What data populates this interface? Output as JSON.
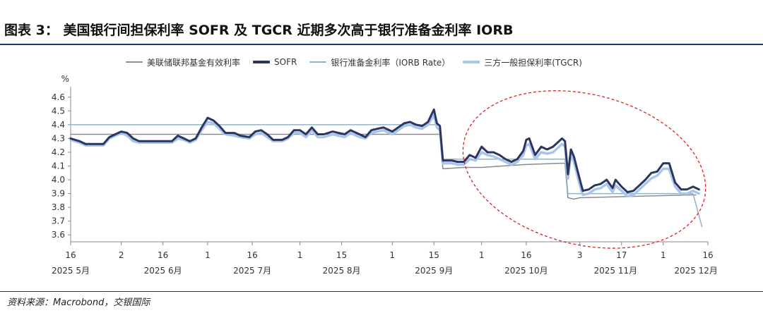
{
  "header": {
    "title": "图表 3： 美国银行间担保利率 SOFR 及 TGCR 近期多次高于银行准备金利率 IORB"
  },
  "footer": {
    "source": "资料来源：Macrobond，交银国际"
  },
  "colors": {
    "effr": "#8c8c8c",
    "sofr": "#2b3560",
    "iorb": "#8eb4cc",
    "tgcr": "#a9c6ea",
    "annotation": "#e02020"
  },
  "chart_data": {
    "type": "line",
    "ylabel": "%",
    "ylim": [
      3.55,
      4.65
    ],
    "yticks": [
      3.6,
      3.7,
      3.8,
      3.9,
      4.0,
      4.1,
      4.2,
      4.3,
      4.4,
      4.5,
      4.6
    ],
    "ytick_labels": [
      "3.6",
      "3.7",
      "3.8",
      "3.9",
      "4.0",
      "4.1",
      "4.2",
      "4.3",
      "4.4",
      "4.5",
      "4.6"
    ],
    "xlim": [
      "2025-05-16",
      "2025-12-16"
    ],
    "xticks": [
      {
        "date": "2025-05-16",
        "label": "16"
      },
      {
        "date": "2025-06-02",
        "label": "2"
      },
      {
        "date": "2025-06-16",
        "label": "16"
      },
      {
        "date": "2025-07-01",
        "label": "1"
      },
      {
        "date": "2025-07-16",
        "label": "16"
      },
      {
        "date": "2025-08-01",
        "label": "1"
      },
      {
        "date": "2025-08-15",
        "label": "15"
      },
      {
        "date": "2025-09-01",
        "label": "1"
      },
      {
        "date": "2025-09-15",
        "label": "15"
      },
      {
        "date": "2025-10-01",
        "label": "1"
      },
      {
        "date": "2025-10-16",
        "label": "16"
      },
      {
        "date": "2025-11-03",
        "label": "3"
      },
      {
        "date": "2025-11-17",
        "label": "17"
      },
      {
        "date": "2025-12-01",
        "label": "1"
      },
      {
        "date": "2025-12-16",
        "label": "16"
      }
    ],
    "month_labels": [
      {
        "date": "2025-05-16",
        "label": "2025 5月"
      },
      {
        "date": "2025-06-16",
        "label": "2025 6月"
      },
      {
        "date": "2025-07-16",
        "label": "2025 7月"
      },
      {
        "date": "2025-08-15",
        "label": "2025 8月"
      },
      {
        "date": "2025-09-15",
        "label": "2025 9月"
      },
      {
        "date": "2025-10-16",
        "label": "2025 10月"
      },
      {
        "date": "2025-11-15",
        "label": "2025 11月"
      },
      {
        "date": "2025-12-12",
        "label": "2025 12月"
      }
    ],
    "grid": false,
    "legend_position": "top",
    "series": [
      {
        "name": "美联储联邦基金有效利率",
        "key": "effr",
        "points": [
          [
            "2025-05-16",
            4.33
          ],
          [
            "2025-09-17",
            4.33
          ],
          [
            "2025-09-18",
            4.08
          ],
          [
            "2025-09-25",
            4.09
          ],
          [
            "2025-10-01",
            4.09
          ],
          [
            "2025-10-15",
            4.11
          ],
          [
            "2025-10-27",
            4.12
          ],
          [
            "2025-10-29",
            4.12
          ],
          [
            "2025-10-30",
            3.87
          ],
          [
            "2025-11-01",
            3.86
          ],
          [
            "2025-11-03",
            3.87
          ],
          [
            "2025-12-10",
            3.89
          ],
          [
            "2025-12-12",
            3.89
          ]
        ]
      },
      {
        "name": "SOFR",
        "key": "sofr",
        "points": [
          [
            "2025-05-16",
            4.3
          ],
          [
            "2025-05-19",
            4.28
          ],
          [
            "2025-05-21",
            4.26
          ],
          [
            "2025-05-27",
            4.26
          ],
          [
            "2025-05-29",
            4.31
          ],
          [
            "2025-05-31",
            4.33
          ],
          [
            "2025-06-02",
            4.35
          ],
          [
            "2025-06-04",
            4.34
          ],
          [
            "2025-06-06",
            4.3
          ],
          [
            "2025-06-08",
            4.28
          ],
          [
            "2025-06-13",
            4.28
          ],
          [
            "2025-06-17",
            4.28
          ],
          [
            "2025-06-19",
            4.28
          ],
          [
            "2025-06-21",
            4.32
          ],
          [
            "2025-06-23",
            4.3
          ],
          [
            "2025-06-25",
            4.28
          ],
          [
            "2025-06-27",
            4.3
          ],
          [
            "2025-06-29",
            4.38
          ],
          [
            "2025-07-01",
            4.45
          ],
          [
            "2025-07-03",
            4.43
          ],
          [
            "2025-07-05",
            4.39
          ],
          [
            "2025-07-07",
            4.34
          ],
          [
            "2025-07-10",
            4.34
          ],
          [
            "2025-07-12",
            4.32
          ],
          [
            "2025-07-15",
            4.31
          ],
          [
            "2025-07-17",
            4.35
          ],
          [
            "2025-07-19",
            4.36
          ],
          [
            "2025-07-21",
            4.33
          ],
          [
            "2025-07-23",
            4.29
          ],
          [
            "2025-07-26",
            4.29
          ],
          [
            "2025-07-28",
            4.31
          ],
          [
            "2025-07-30",
            4.36
          ],
          [
            "2025-08-01",
            4.36
          ],
          [
            "2025-08-03",
            4.33
          ],
          [
            "2025-08-05",
            4.38
          ],
          [
            "2025-08-07",
            4.33
          ],
          [
            "2025-08-09",
            4.33
          ],
          [
            "2025-08-12",
            4.35
          ],
          [
            "2025-08-14",
            4.34
          ],
          [
            "2025-08-16",
            4.33
          ],
          [
            "2025-08-18",
            4.36
          ],
          [
            "2025-08-21",
            4.33
          ],
          [
            "2025-08-23",
            4.31
          ],
          [
            "2025-08-25",
            4.36
          ],
          [
            "2025-08-27",
            4.37
          ],
          [
            "2025-08-29",
            4.38
          ],
          [
            "2025-09-01",
            4.35
          ],
          [
            "2025-09-03",
            4.38
          ],
          [
            "2025-09-05",
            4.41
          ],
          [
            "2025-09-07",
            4.42
          ],
          [
            "2025-09-09",
            4.4
          ],
          [
            "2025-09-11",
            4.39
          ],
          [
            "2025-09-13",
            4.42
          ],
          [
            "2025-09-15",
            4.51
          ],
          [
            "2025-09-16",
            4.41
          ],
          [
            "2025-09-17",
            4.39
          ],
          [
            "2025-09-18",
            4.14
          ],
          [
            "2025-09-21",
            4.14
          ],
          [
            "2025-09-23",
            4.13
          ],
          [
            "2025-09-25",
            4.13
          ],
          [
            "2025-09-27",
            4.18
          ],
          [
            "2025-09-29",
            4.16
          ],
          [
            "2025-10-01",
            4.24
          ],
          [
            "2025-10-03",
            4.2
          ],
          [
            "2025-10-05",
            4.2
          ],
          [
            "2025-10-07",
            4.18
          ],
          [
            "2025-10-09",
            4.15
          ],
          [
            "2025-10-11",
            4.13
          ],
          [
            "2025-10-13",
            4.15
          ],
          [
            "2025-10-15",
            4.21
          ],
          [
            "2025-10-16",
            4.29
          ],
          [
            "2025-10-17",
            4.3
          ],
          [
            "2025-10-19",
            4.18
          ],
          [
            "2025-10-21",
            4.24
          ],
          [
            "2025-10-23",
            4.22
          ],
          [
            "2025-10-25",
            4.24
          ],
          [
            "2025-10-27",
            4.28
          ],
          [
            "2025-10-28",
            4.3
          ],
          [
            "2025-10-29",
            4.28
          ],
          [
            "2025-10-30",
            4.04
          ],
          [
            "2025-10-31",
            4.22
          ],
          [
            "2025-11-01",
            4.17
          ],
          [
            "2025-11-03",
            4.0
          ],
          [
            "2025-11-04",
            3.92
          ],
          [
            "2025-11-06",
            3.93
          ],
          [
            "2025-11-08",
            3.96
          ],
          [
            "2025-11-10",
            3.97
          ],
          [
            "2025-11-12",
            4.0
          ],
          [
            "2025-11-14",
            3.94
          ],
          [
            "2025-11-15",
            4.0
          ],
          [
            "2025-11-17",
            3.95
          ],
          [
            "2025-11-19",
            3.91
          ],
          [
            "2025-11-21",
            3.92
          ],
          [
            "2025-11-23",
            3.96
          ],
          [
            "2025-11-25",
            4.0
          ],
          [
            "2025-11-27",
            4.05
          ],
          [
            "2025-11-29",
            4.06
          ],
          [
            "2025-12-01",
            4.12
          ],
          [
            "2025-12-03",
            4.12
          ],
          [
            "2025-12-05",
            3.98
          ],
          [
            "2025-12-07",
            3.93
          ],
          [
            "2025-12-09",
            3.93
          ],
          [
            "2025-12-11",
            3.95
          ],
          [
            "2025-12-13",
            3.93
          ]
        ]
      },
      {
        "name": "银行准备金利率（IORB Rate）",
        "key": "iorb",
        "points": [
          [
            "2025-05-16",
            4.4
          ],
          [
            "2025-09-17",
            4.4
          ],
          [
            "2025-09-18",
            4.15
          ],
          [
            "2025-10-29",
            4.15
          ],
          [
            "2025-10-30",
            3.9
          ],
          [
            "2025-12-10",
            3.9
          ],
          [
            "2025-12-11",
            3.9
          ],
          [
            "2025-12-14",
            3.66
          ]
        ]
      },
      {
        "name": "三方一般担保利率(TGCR)",
        "key": "tgcr",
        "points": [
          [
            "2025-05-16",
            4.29
          ],
          [
            "2025-05-19",
            4.27
          ],
          [
            "2025-05-21",
            4.25
          ],
          [
            "2025-05-27",
            4.25
          ],
          [
            "2025-05-29",
            4.3
          ],
          [
            "2025-05-31",
            4.32
          ],
          [
            "2025-06-02",
            4.34
          ],
          [
            "2025-06-04",
            4.32
          ],
          [
            "2025-06-06",
            4.28
          ],
          [
            "2025-06-08",
            4.27
          ],
          [
            "2025-06-13",
            4.27
          ],
          [
            "2025-06-17",
            4.27
          ],
          [
            "2025-06-19",
            4.27
          ],
          [
            "2025-06-21",
            4.3
          ],
          [
            "2025-06-23",
            4.29
          ],
          [
            "2025-06-25",
            4.27
          ],
          [
            "2025-06-27",
            4.29
          ],
          [
            "2025-06-29",
            4.36
          ],
          [
            "2025-07-01",
            4.42
          ],
          [
            "2025-07-03",
            4.41
          ],
          [
            "2025-07-05",
            4.37
          ],
          [
            "2025-07-07",
            4.33
          ],
          [
            "2025-07-10",
            4.32
          ],
          [
            "2025-07-12",
            4.31
          ],
          [
            "2025-07-15",
            4.3
          ],
          [
            "2025-07-17",
            4.33
          ],
          [
            "2025-07-19",
            4.34
          ],
          [
            "2025-07-21",
            4.31
          ],
          [
            "2025-07-23",
            4.28
          ],
          [
            "2025-07-26",
            4.28
          ],
          [
            "2025-07-28",
            4.3
          ],
          [
            "2025-07-30",
            4.34
          ],
          [
            "2025-08-01",
            4.34
          ],
          [
            "2025-08-03",
            4.31
          ],
          [
            "2025-08-05",
            4.36
          ],
          [
            "2025-08-07",
            4.31
          ],
          [
            "2025-08-09",
            4.31
          ],
          [
            "2025-08-12",
            4.33
          ],
          [
            "2025-08-14",
            4.32
          ],
          [
            "2025-08-16",
            4.31
          ],
          [
            "2025-08-18",
            4.34
          ],
          [
            "2025-08-21",
            4.31
          ],
          [
            "2025-08-23",
            4.3
          ],
          [
            "2025-08-25",
            4.34
          ],
          [
            "2025-08-27",
            4.35
          ],
          [
            "2025-08-29",
            4.36
          ],
          [
            "2025-09-01",
            4.33
          ],
          [
            "2025-09-03",
            4.36
          ],
          [
            "2025-09-05",
            4.39
          ],
          [
            "2025-09-07",
            4.4
          ],
          [
            "2025-09-09",
            4.38
          ],
          [
            "2025-09-11",
            4.37
          ],
          [
            "2025-09-13",
            4.4
          ],
          [
            "2025-09-15",
            4.47
          ],
          [
            "2025-09-16",
            4.38
          ],
          [
            "2025-09-17",
            4.36
          ],
          [
            "2025-09-18",
            4.12
          ],
          [
            "2025-09-21",
            4.12
          ],
          [
            "2025-09-23",
            4.11
          ],
          [
            "2025-09-25",
            4.11
          ],
          [
            "2025-09-27",
            4.15
          ],
          [
            "2025-09-29",
            4.14
          ],
          [
            "2025-10-01",
            4.2
          ],
          [
            "2025-10-03",
            4.18
          ],
          [
            "2025-10-05",
            4.17
          ],
          [
            "2025-10-07",
            4.15
          ],
          [
            "2025-10-09",
            4.13
          ],
          [
            "2025-10-11",
            4.11
          ],
          [
            "2025-10-13",
            4.13
          ],
          [
            "2025-10-15",
            4.18
          ],
          [
            "2025-10-16",
            4.25
          ],
          [
            "2025-10-17",
            4.26
          ],
          [
            "2025-10-19",
            4.15
          ],
          [
            "2025-10-21",
            4.2
          ],
          [
            "2025-10-23",
            4.19
          ],
          [
            "2025-10-25",
            4.2
          ],
          [
            "2025-10-27",
            4.24
          ],
          [
            "2025-10-28",
            4.26
          ],
          [
            "2025-10-29",
            4.24
          ],
          [
            "2025-10-30",
            4.01
          ],
          [
            "2025-10-31",
            4.18
          ],
          [
            "2025-11-01",
            4.13
          ],
          [
            "2025-11-03",
            3.96
          ],
          [
            "2025-11-04",
            3.89
          ],
          [
            "2025-11-06",
            3.9
          ],
          [
            "2025-11-08",
            3.93
          ],
          [
            "2025-11-10",
            3.94
          ],
          [
            "2025-11-12",
            3.97
          ],
          [
            "2025-11-14",
            3.91
          ],
          [
            "2025-11-15",
            3.96
          ],
          [
            "2025-11-17",
            3.92
          ],
          [
            "2025-11-19",
            3.88
          ],
          [
            "2025-11-21",
            3.89
          ],
          [
            "2025-11-23",
            3.93
          ],
          [
            "2025-11-25",
            3.97
          ],
          [
            "2025-11-27",
            4.01
          ],
          [
            "2025-11-29",
            4.03
          ],
          [
            "2025-12-01",
            4.08
          ],
          [
            "2025-12-03",
            4.08
          ],
          [
            "2025-12-05",
            3.95
          ],
          [
            "2025-12-07",
            3.9
          ],
          [
            "2025-12-09",
            3.9
          ],
          [
            "2025-12-11",
            3.92
          ],
          [
            "2025-12-13",
            3.9
          ]
        ]
      }
    ],
    "annotations": [
      {
        "type": "ellipse",
        "style": "dashed",
        "color": "#e02020",
        "x_range": [
          "2025-09-24",
          "2025-12-16"
        ],
        "y_range": [
          3.53,
          4.62
        ]
      }
    ]
  }
}
